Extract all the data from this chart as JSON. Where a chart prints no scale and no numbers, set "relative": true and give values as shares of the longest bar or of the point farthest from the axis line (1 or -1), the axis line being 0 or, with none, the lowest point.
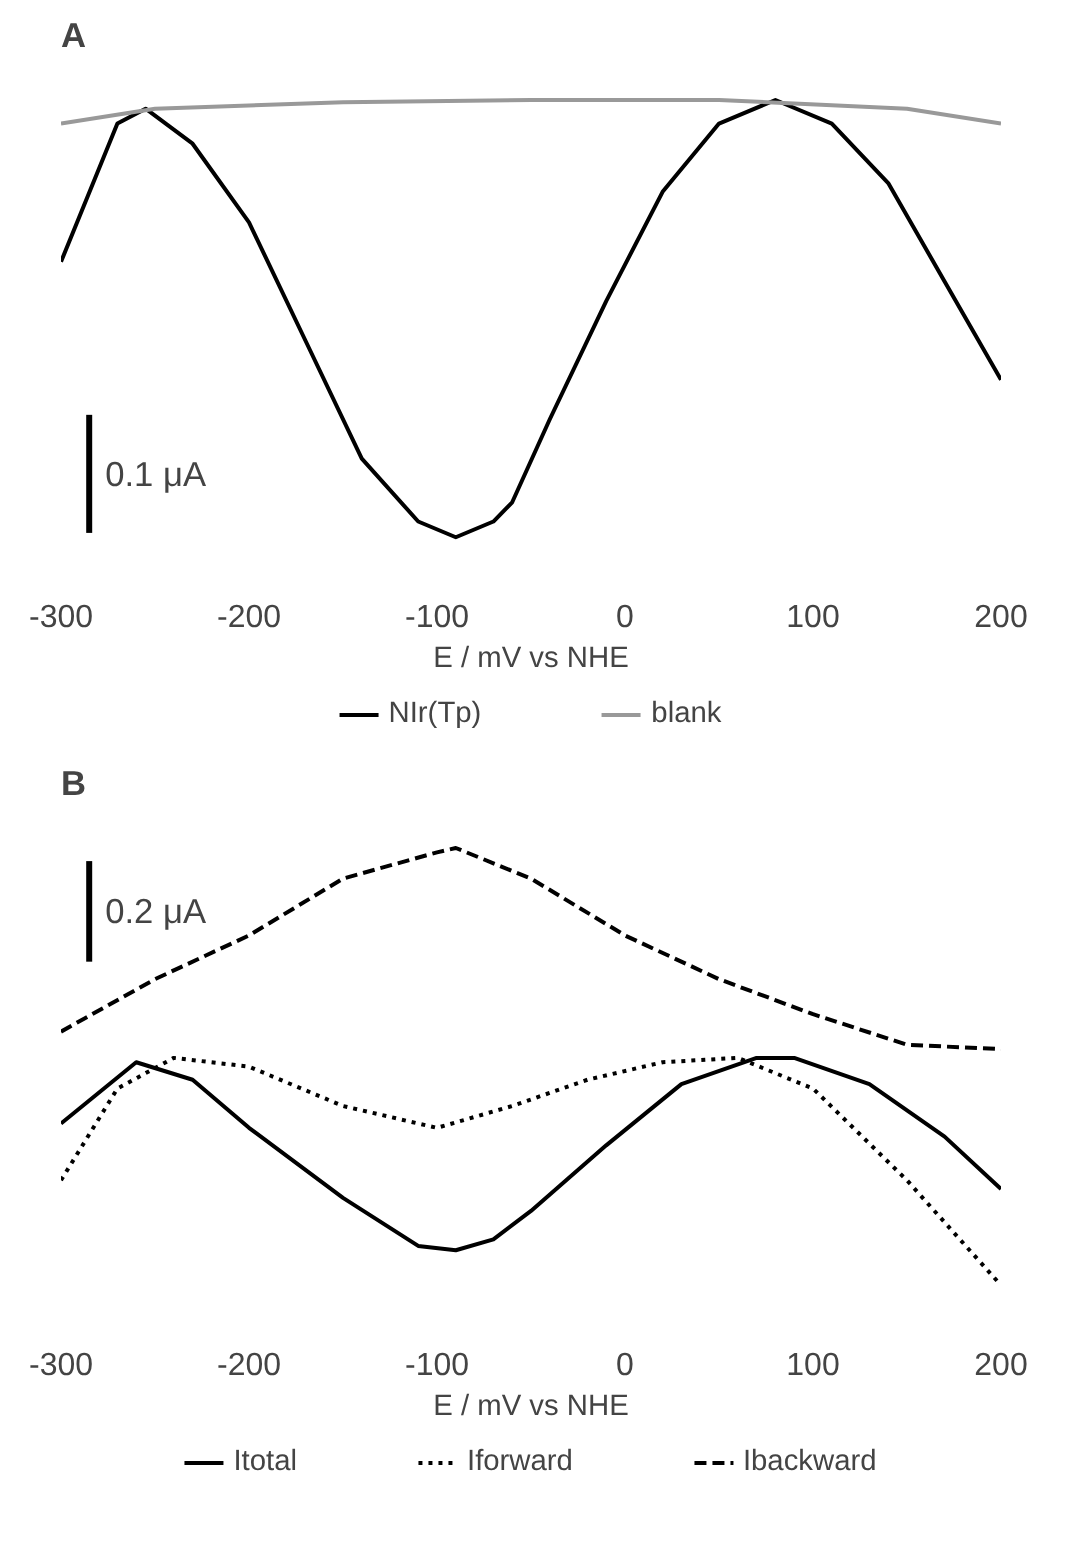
{
  "chart_data": [
    {
      "type": "line",
      "title": "A",
      "xlabel": "E / mV vs NHE",
      "relative": true,
      "xlim": [
        -300,
        200
      ],
      "xticks": [
        -300,
        -200,
        -100,
        0,
        100,
        200
      ],
      "grid": false,
      "legend": "bottom",
      "marker": "none",
      "annotations": [
        "0.1 μA"
      ],
      "series": [
        {
          "name": "NIr(Tp)",
          "color": "#000000",
          "line_style": "solid",
          "x": [
            -300,
            -270,
            -255,
            -230,
            -200,
            -170,
            -140,
            -110,
            -90,
            -70,
            -60,
            -40,
            -10,
            20,
            50,
            80,
            110,
            140,
            170,
            200
          ],
          "values": [
            0.63,
            0.946,
            0.98,
            0.9,
            0.72,
            0.45,
            0.18,
            0.036,
            0,
            0.036,
            0.08,
            0.27,
            0.54,
            0.79,
            0.946,
            1.0,
            0.946,
            0.81,
            0.585,
            0.36
          ]
        },
        {
          "name": "blank",
          "color": "#999999",
          "line_style": "solid",
          "x": [
            -300,
            -250,
            -150,
            -50,
            50,
            150,
            200
          ],
          "values": [
            0.946,
            0.98,
            0.995,
            1.0,
            1.0,
            0.98,
            0.946
          ]
        }
      ]
    },
    {
      "type": "line",
      "title": "B",
      "xlabel": "E / mV vs NHE",
      "relative": true,
      "xlim": [
        -300,
        200
      ],
      "xticks": [
        -300,
        -200,
        -100,
        0,
        100,
        200
      ],
      "grid": false,
      "legend": "bottom",
      "marker": "none",
      "annotations": [
        "0.2 μA"
      ],
      "series": [
        {
          "name": "Itotal",
          "color": "#000000",
          "line_style": "solid",
          "x": [
            -300,
            -260,
            -230,
            -200,
            -150,
            -110,
            -90,
            -70,
            -50,
            -10,
            30,
            70,
            90,
            130,
            170,
            200
          ],
          "values": [
            0.37,
            0.51,
            0.47,
            0.36,
            0.2,
            0.09,
            0.08,
            0.105,
            0.17,
            0.32,
            0.46,
            0.52,
            0.52,
            0.46,
            0.34,
            0.22
          ]
        },
        {
          "name": "Iforward",
          "color": "#000000",
          "line_style": "dotted",
          "x": [
            -300,
            -270,
            -240,
            -200,
            -150,
            -100,
            -60,
            -20,
            20,
            60,
            100,
            150,
            200
          ],
          "values": [
            0.24,
            0.45,
            0.52,
            0.5,
            0.41,
            0.36,
            0.41,
            0.47,
            0.51,
            0.52,
            0.45,
            0.24,
            0
          ]
        },
        {
          "name": "Ibackward",
          "color": "#000000",
          "line_style": "dashed",
          "x": [
            -300,
            -250,
            -200,
            -150,
            -100,
            -90,
            -50,
            0,
            50,
            100,
            150,
            200
          ],
          "values": [
            0.58,
            0.7,
            0.8,
            0.93,
            0.99,
            1.0,
            0.93,
            0.8,
            0.7,
            0.62,
            0.55,
            0.54
          ]
        }
      ]
    }
  ]
}
